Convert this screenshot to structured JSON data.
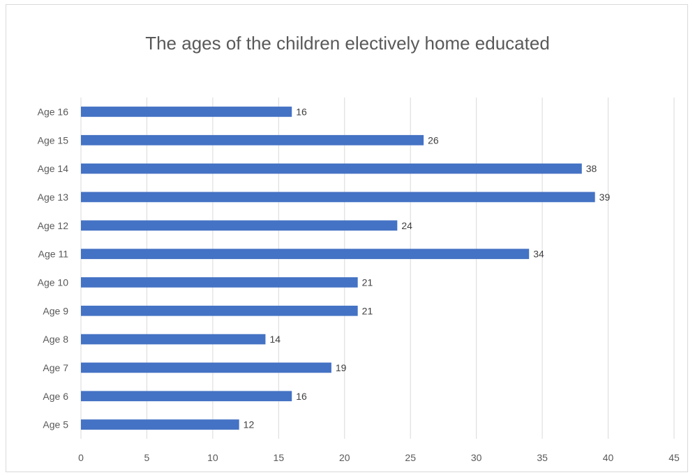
{
  "chart_data": {
    "type": "bar",
    "orientation": "horizontal",
    "title": "The ages of the children electively home educated",
    "xlabel": "",
    "ylabel": "",
    "categories": [
      "Age 5",
      "Age 6",
      "Age 7",
      "Age 8",
      "Age 9",
      "Age 10",
      "Age 11",
      "Age 12",
      "Age 13",
      "Age 14",
      "Age 15",
      "Age 16"
    ],
    "values": [
      12,
      16,
      19,
      14,
      21,
      21,
      34,
      24,
      39,
      38,
      26,
      16
    ],
    "xlim": [
      0,
      45
    ],
    "xticks": [
      0,
      5,
      10,
      15,
      20,
      25,
      30,
      35,
      40,
      45
    ],
    "grid": true,
    "legend": "none",
    "data_labels": true,
    "bar_color": "#4472c4",
    "grid_color": "#d9d9d9"
  }
}
